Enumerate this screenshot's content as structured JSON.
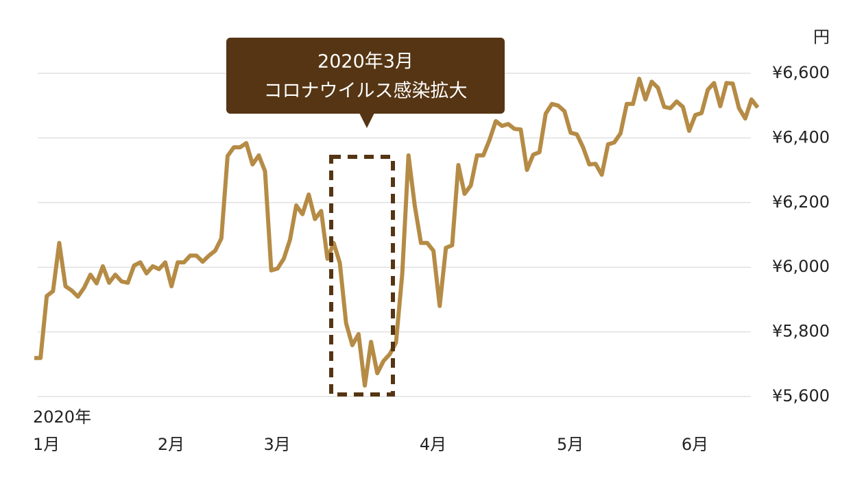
{
  "chart_data": {
    "type": "line",
    "y_unit": "円",
    "x_year_label": "2020年",
    "annotation": {
      "title": "2020年3月",
      "text": "コロナウイルス感染拡大"
    },
    "categories": [
      "1月",
      null,
      null,
      null,
      null,
      null,
      null,
      null,
      null,
      null,
      null,
      null,
      null,
      null,
      null,
      null,
      null,
      null,
      null,
      null,
      "2月",
      null,
      null,
      null,
      null,
      null,
      null,
      null,
      null,
      null,
      null,
      null,
      null,
      null,
      null,
      null,
      null,
      "3月",
      null,
      null,
      null,
      null,
      null,
      null,
      null,
      null,
      null,
      null,
      null,
      null,
      null,
      null,
      null,
      null,
      null,
      null,
      null,
      null,
      null,
      null,
      null,
      null,
      "4月",
      null,
      null,
      null,
      null,
      null,
      null,
      null,
      null,
      null,
      null,
      null,
      null,
      null,
      null,
      null,
      null,
      null,
      null,
      null,
      null,
      null,
      "5月",
      null,
      null,
      null,
      null,
      null,
      null,
      null,
      null,
      null,
      null,
      null,
      null,
      null,
      null,
      null,
      null,
      null,
      null,
      null,
      "6月",
      null,
      null,
      null,
      null,
      null,
      null,
      null,
      null,
      null,
      null,
      null,
      null
    ],
    "series": [
      {
        "color": "#b58b45",
        "values": [
          5719,
          5719,
          5911,
          5926,
          6075,
          5941,
          5928,
          5909,
          5937,
          5977,
          5950,
          6003,
          5952,
          5977,
          5956,
          5952,
          6005,
          6015,
          5981,
          6003,
          5994,
          6015,
          5941,
          6015,
          6015,
          6036,
          6036,
          6017,
          6036,
          6051,
          6089,
          6344,
          6371,
          6371,
          6384,
          6318,
          6346,
          6297,
          5990,
          5996,
          6026,
          6085,
          6191,
          6164,
          6225,
          6149,
          6174,
          6026,
          6075,
          6013,
          5827,
          5759,
          5793,
          5634,
          5769,
          5672,
          5710,
          5731,
          5767,
          5979,
          6346,
          6191,
          6075,
          6075,
          6051,
          5880,
          6060,
          6068,
          6316,
          6227,
          6253,
          6346,
          6346,
          6394,
          6452,
          6437,
          6443,
          6428,
          6426,
          6301,
          6348,
          6356,
          6475,
          6505,
          6500,
          6483,
          6416,
          6411,
          6371,
          6318,
          6320,
          6286,
          6380,
          6386,
          6414,
          6505,
          6505,
          6583,
          6519,
          6574,
          6555,
          6496,
          6492,
          6513,
          6496,
          6422,
          6471,
          6477,
          6549,
          6570,
          6498,
          6570,
          6568,
          6492,
          6460,
          6519,
          6494
        ]
      }
    ],
    "ylim": [
      5600,
      6600
    ],
    "yticks": [
      {
        "value": 5600,
        "label": "¥5,600"
      },
      {
        "value": 5800,
        "label": "¥5,800"
      },
      {
        "value": 6000,
        "label": "¥6,000"
      },
      {
        "value": 6200,
        "label": "¥6,200"
      },
      {
        "value": 6400,
        "label": "¥6,400"
      },
      {
        "value": 6600,
        "label": "¥6,600"
      }
    ],
    "grid": true
  }
}
